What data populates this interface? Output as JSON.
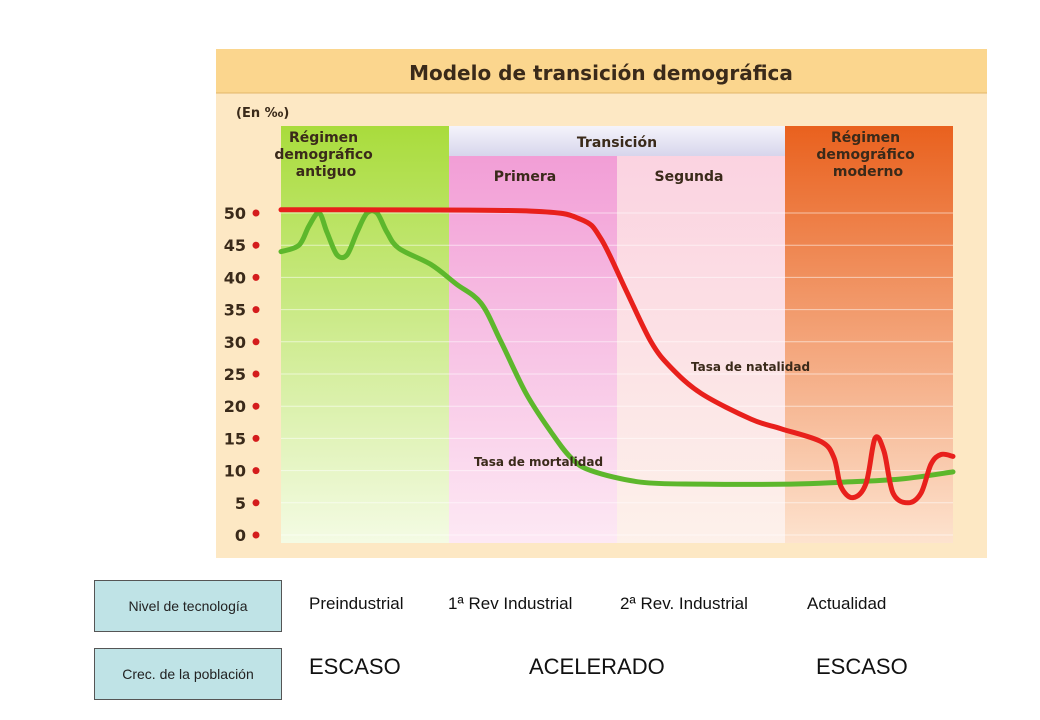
{
  "chart_data": {
    "type": "line",
    "title": "Modelo de transición demográfica",
    "ylabel": "(En ‰)",
    "ylim": [
      0,
      50
    ],
    "yticks": [
      0,
      5,
      10,
      15,
      20,
      25,
      30,
      35,
      40,
      45,
      50
    ],
    "phases": [
      {
        "label": "Régimen demográfico antiguo",
        "color": "#a9dc3c"
      },
      {
        "label": "Transición",
        "color": "#eceaf6"
      },
      {
        "label": "Primera",
        "color": "#f29ed6"
      },
      {
        "label": "Segunda",
        "color": "#fbd3e1"
      },
      {
        "label": "Régimen demográfico moderno",
        "color": "#ef7a2a"
      }
    ],
    "series": [
      {
        "name": "Tasa de natalidad",
        "color": "#e8201c"
      },
      {
        "name": "Tasa de mortalidad",
        "color": "#5db72c"
      }
    ],
    "natalidad_points": [
      [
        0,
        50.5
      ],
      [
        70,
        50.5
      ],
      [
        250,
        50.3
      ],
      [
        300,
        49
      ],
      [
        320,
        46
      ],
      [
        345,
        38
      ],
      [
        370,
        30
      ],
      [
        390,
        26
      ],
      [
        420,
        22
      ],
      [
        470,
        18
      ],
      [
        500,
        16.5
      ],
      [
        540,
        14.5
      ],
      [
        553,
        12
      ],
      [
        560,
        7.5
      ],
      [
        572,
        5.8
      ],
      [
        585,
        8
      ],
      [
        594,
        15
      ],
      [
        603,
        13
      ],
      [
        612,
        6.5
      ],
      [
        627,
        5
      ],
      [
        640,
        6.5
      ],
      [
        650,
        11
      ],
      [
        660,
        12.5
      ],
      [
        672,
        12.2
      ]
    ],
    "mortalidad_points": [
      [
        0,
        44
      ],
      [
        18,
        45
      ],
      [
        28,
        48
      ],
      [
        38,
        50
      ],
      [
        46,
        47
      ],
      [
        56,
        43.5
      ],
      [
        66,
        43.5
      ],
      [
        76,
        47
      ],
      [
        86,
        50
      ],
      [
        96,
        50
      ],
      [
        106,
        47
      ],
      [
        118,
        44.5
      ],
      [
        150,
        42
      ],
      [
        175,
        39
      ],
      [
        200,
        36
      ],
      [
        220,
        30
      ],
      [
        245,
        22
      ],
      [
        270,
        16
      ],
      [
        290,
        12
      ],
      [
        310,
        10
      ],
      [
        360,
        8.2
      ],
      [
        420,
        7.9
      ],
      [
        510,
        7.9
      ],
      [
        560,
        8.2
      ],
      [
        620,
        8.7
      ],
      [
        672,
        9.8
      ]
    ]
  },
  "info_rows": {
    "tecnologia_label": "Nivel de tecnología",
    "poblacion_label": "Crec. de la población",
    "tecnologia": [
      "Preindustrial",
      "1ª Rev Industrial",
      "2ª Rev. Industrial",
      "Actualidad"
    ],
    "poblacion": [
      "ESCASO",
      "ACELERADO",
      "ESCASO"
    ]
  }
}
